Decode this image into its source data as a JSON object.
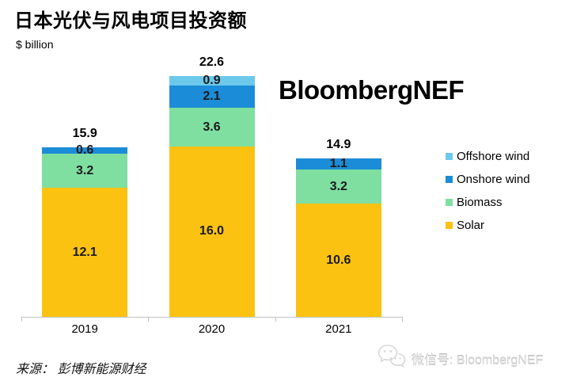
{
  "header": {
    "title": "日本光伏与风电项目投资额",
    "unit_label": "$ billion"
  },
  "watermark": {
    "brand": "BloombergNEF"
  },
  "chart_data": {
    "type": "bar",
    "stacked": true,
    "title": "日本光伏与风电项目投资额",
    "ylabel": "$ billion",
    "categories": [
      "2019",
      "2020",
      "2021"
    ],
    "series": [
      {
        "name": "Solar",
        "color": "#FCC212",
        "values": [
          12.1,
          16.0,
          10.6
        ]
      },
      {
        "name": "Biomass",
        "color": "#7EDFA1",
        "values": [
          3.2,
          3.6,
          3.2
        ]
      },
      {
        "name": "Onshore wind",
        "color": "#1B8CD8",
        "values": [
          0.6,
          2.1,
          1.1
        ]
      },
      {
        "name": "Offshore wind",
        "color": "#6CC9EB",
        "values": [
          0,
          0.9,
          0
        ]
      }
    ],
    "totals": [
      15.9,
      22.6,
      14.9
    ],
    "grid": false,
    "legend_position": "right",
    "axis_color": "#C2C2C2"
  },
  "legend": {
    "items": [
      {
        "label": "Offshore wind",
        "color": "#6CC9EB"
      },
      {
        "label": "Onshore wind",
        "color": "#1B8CD8"
      },
      {
        "label": "Biomass",
        "color": "#7EDFA1"
      },
      {
        "label": "Solar",
        "color": "#FCC212"
      }
    ]
  },
  "footer": {
    "source": "来源：  彭博新能源财经",
    "wechat_label": "微信号: BloombergNEF"
  }
}
